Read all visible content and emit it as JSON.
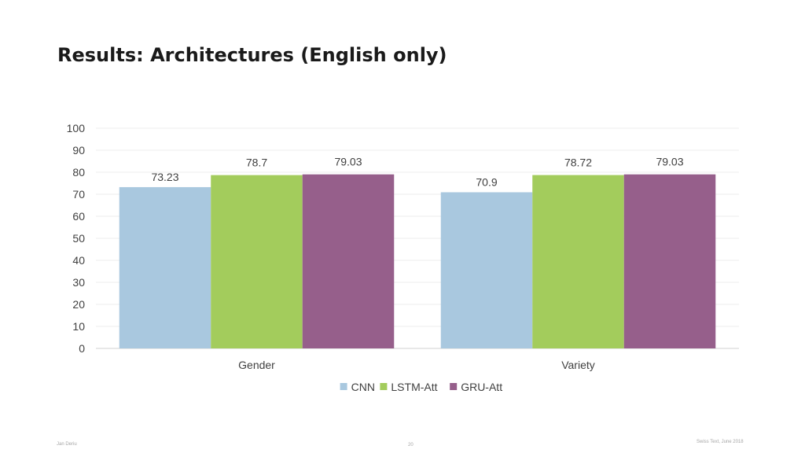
{
  "slide": {
    "title": "Results: Architectures (English only)",
    "footer_left": "Jan Deriu",
    "footer_center": "20",
    "footer_right": "Swiss Text, June 2018"
  },
  "chart_data": {
    "type": "bar",
    "categories": [
      "Gender",
      "Variety"
    ],
    "series": [
      {
        "name": "CNN",
        "values": [
          73.23,
          70.9
        ],
        "labels": [
          "73.23",
          "70.9"
        ],
        "color": "#a9c8df"
      },
      {
        "name": "LSTM-Att",
        "values": [
          78.7,
          78.72
        ],
        "labels": [
          "78.7",
          "78.72"
        ],
        "color": "#a3cc5c"
      },
      {
        "name": "GRU-Att",
        "values": [
          79.03,
          79.03
        ],
        "labels": [
          "79.03",
          "79.03"
        ],
        "color": "#965f8b"
      }
    ],
    "ylim": [
      0,
      100
    ],
    "yticks": [
      "0",
      "10",
      "20",
      "30",
      "40",
      "50",
      "60",
      "70",
      "80",
      "90",
      "100"
    ],
    "xlabel": "",
    "ylabel": "",
    "grid": true,
    "legend": "bottom"
  }
}
